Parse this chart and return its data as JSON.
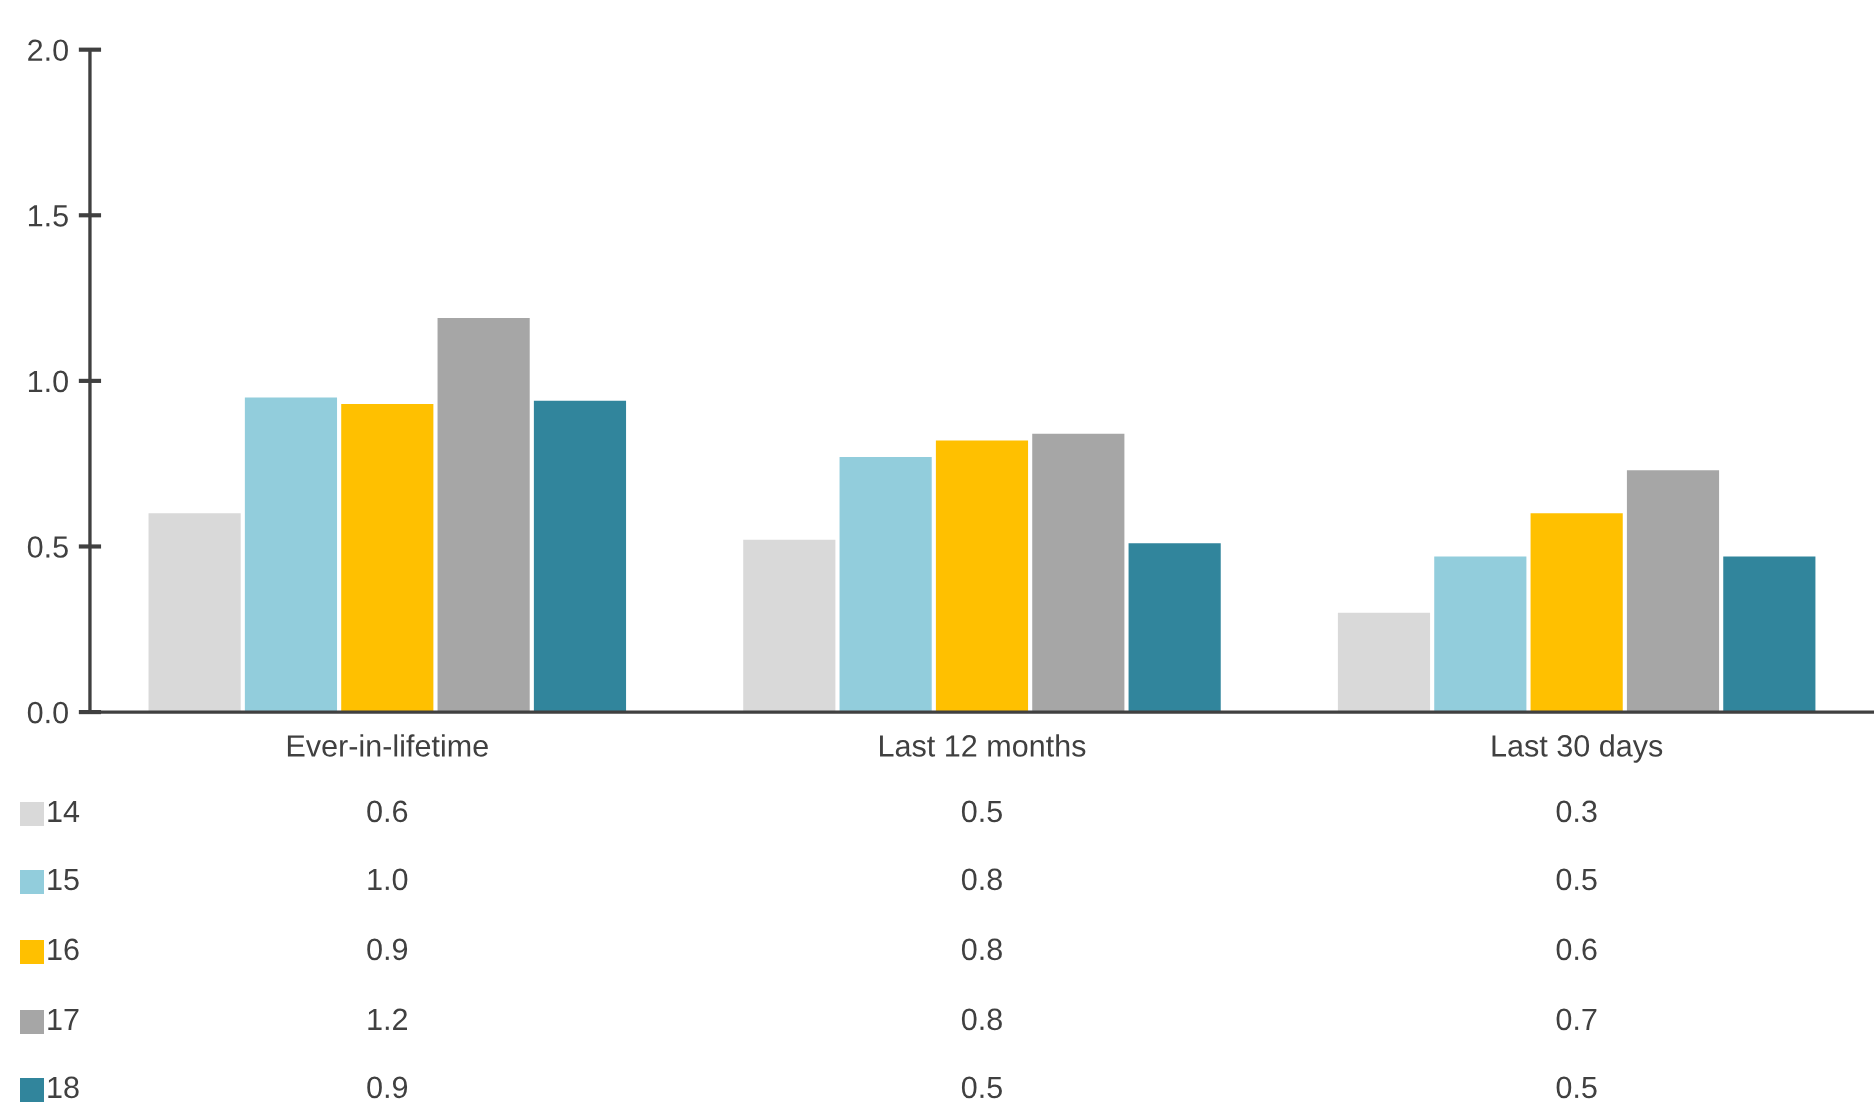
{
  "chart_data": {
    "type": "bar",
    "categories": [
      "Ever-in-lifetime",
      "Last 12 months",
      "Last 30 days"
    ],
    "series": [
      {
        "name": "14",
        "color": "#d9d9d9",
        "values": [
          0.6,
          0.52,
          0.3
        ],
        "value_labels": [
          "0.6",
          "0.5",
          "0.3"
        ]
      },
      {
        "name": "15",
        "color": "#92cddc",
        "values": [
          0.95,
          0.77,
          0.47
        ],
        "value_labels": [
          "1.0",
          "0.8",
          "0.5"
        ]
      },
      {
        "name": "16",
        "color": "#ffc000",
        "values": [
          0.93,
          0.82,
          0.6
        ],
        "value_labels": [
          "0.9",
          "0.8",
          "0.6"
        ]
      },
      {
        "name": "17",
        "color": "#a6a6a6",
        "values": [
          1.19,
          0.84,
          0.73
        ],
        "value_labels": [
          "1.2",
          "0.8",
          "0.7"
        ]
      },
      {
        "name": "18",
        "color": "#31859c",
        "values": [
          0.94,
          0.51,
          0.47
        ],
        "value_labels": [
          "0.9",
          "0.5",
          "0.5"
        ]
      }
    ],
    "ylim": [
      0,
      2.0
    ],
    "yticks": [
      {
        "value": 0,
        "label": "0.0"
      },
      {
        "value": 0.5,
        "label": "0.5"
      },
      {
        "value": 1.0,
        "label": "1.0"
      },
      {
        "value": 1.5,
        "label": "1.5"
      },
      {
        "value": 2.0,
        "label": "2.0"
      }
    ],
    "grid": false,
    "legend": "bottom left"
  }
}
